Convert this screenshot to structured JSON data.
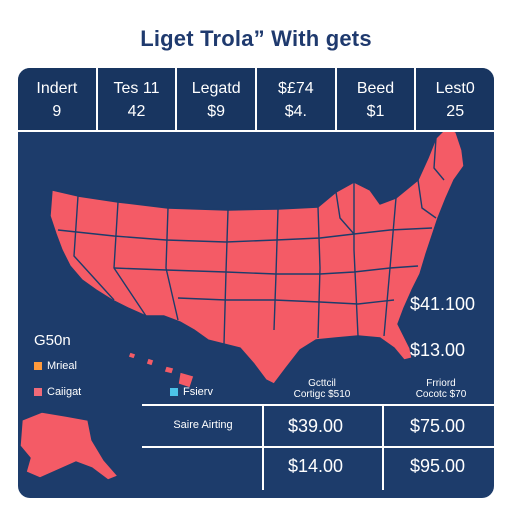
{
  "title": "Liget Trola” With gets",
  "stats": [
    {
      "label": "Indert",
      "value": "9"
    },
    {
      "label": "Tes 11",
      "value": "42"
    },
    {
      "label": "Legatd",
      "value": "$9"
    },
    {
      "label": "$£74",
      "value": "$4."
    },
    {
      "label": "Beed",
      "value": "$1"
    },
    {
      "label": "Lest0",
      "value": "25"
    }
  ],
  "legend": {
    "title": "G50n",
    "items": [
      {
        "label": "Mrieal",
        "color": "#ff9a3c"
      },
      {
        "label": "Caiigat",
        "color": "#f06a78"
      },
      {
        "label": "Fsierv",
        "color": "#4cc3e8"
      }
    ]
  },
  "colors": {
    "map_fill": "#f45b66",
    "map_stroke": "#1d3c6b",
    "panel": "#1d3c6b"
  },
  "side_prices": [
    "$41.100",
    "$13.00"
  ],
  "columns": [
    {
      "header_line1": "Gcttcil",
      "header_line2": "Cortigc $510"
    },
    {
      "header_line1": "Frriord",
      "header_line2": "Cocotc $70"
    }
  ],
  "row_label": "Saire Airting",
  "grid_values": [
    "$39.00",
    "$75.00",
    "$14.00",
    "$95.00"
  ]
}
